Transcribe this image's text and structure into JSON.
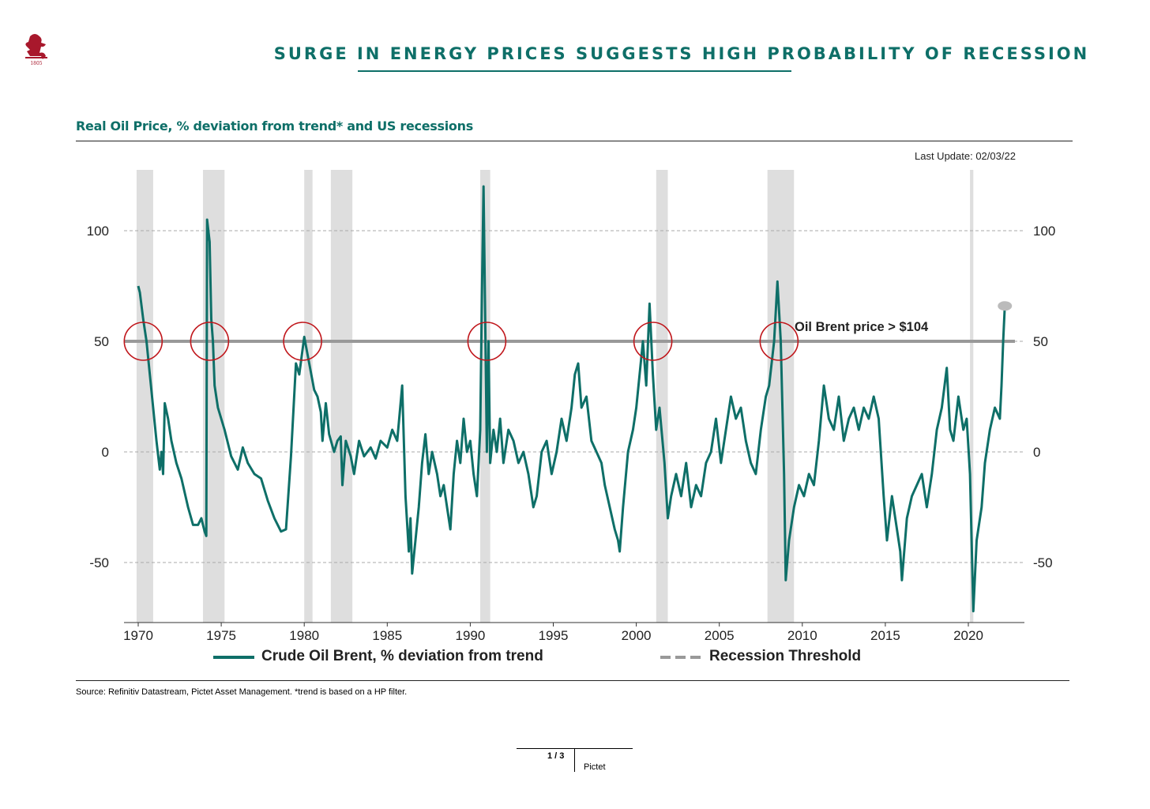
{
  "header": {
    "logo_text": "1805",
    "title": "SURGE IN ENERGY PRICES SUGGESTS HIGH PROBABILITY OF RECESSION",
    "subtitle": "Real Oil Price, % deviation from trend* and US recessions",
    "last_update": "Last Update: 02/03/22"
  },
  "footer": {
    "source": "Source: Refinitiv Datastream, Pictet Asset Management. *trend is based on a HP filter.",
    "page": "1 / 3",
    "brand": "Pictet"
  },
  "colors": {
    "series": "#0e6f68",
    "threshold": "#999999",
    "recession": "#dedede",
    "circle": "#c0161b",
    "title": "#0e6f68"
  },
  "chart_data": {
    "type": "line",
    "title": "Real Oil Price, % deviation from trend* and US recessions",
    "xlim": [
      1968.8,
      2023.5
    ],
    "ylim": [
      -77,
      128
    ],
    "x_ticks": [
      "1970",
      "1975",
      "1980",
      "1985",
      "1990",
      "1995",
      "2000",
      "2005",
      "2010",
      "2015",
      "2020"
    ],
    "y_ticks_left": [
      "100",
      "50",
      "0",
      "-50"
    ],
    "y_ticks_right": [
      "100",
      "50",
      "0",
      "-50"
    ],
    "y_tick_values": [
      100,
      50,
      0,
      -50
    ],
    "grid": "horizontal dashed",
    "legend_position": "bottom",
    "legend": [
      "Crude Oil Brent, % deviation from trend",
      "Recession Threshold"
    ],
    "threshold": {
      "name": "Recession Threshold",
      "value": 50
    },
    "annotation": "Oil Brent price > $104",
    "recessions": [
      [
        1969.9,
        1970.9
      ],
      [
        1973.9,
        1975.2
      ],
      [
        1980.0,
        1980.5
      ],
      [
        1981.6,
        1982.9
      ],
      [
        1990.6,
        1991.2
      ],
      [
        2001.2,
        2001.9
      ],
      [
        2007.9,
        2009.5
      ],
      [
        2020.1,
        2020.3
      ]
    ],
    "highlight_circles_x": [
      1970.3,
      1974.3,
      1979.9,
      1991.0,
      2001.0,
      2008.6
    ],
    "last_point": [
      2022.2,
      66
    ],
    "series": [
      {
        "name": "Crude Oil Brent, % deviation from trend",
        "points": [
          [
            1970.0,
            75
          ],
          [
            1970.1,
            72
          ],
          [
            1970.3,
            60
          ],
          [
            1970.5,
            50
          ],
          [
            1970.7,
            35
          ],
          [
            1970.9,
            20
          ],
          [
            1971.1,
            5
          ],
          [
            1971.3,
            -8
          ],
          [
            1971.4,
            0
          ],
          [
            1971.5,
            -10
          ],
          [
            1971.6,
            22
          ],
          [
            1971.8,
            15
          ],
          [
            1972.0,
            5
          ],
          [
            1972.3,
            -5
          ],
          [
            1972.6,
            -12
          ],
          [
            1973.0,
            -25
          ],
          [
            1973.3,
            -33
          ],
          [
            1973.6,
            -33
          ],
          [
            1973.8,
            -30
          ],
          [
            1974.0,
            -36
          ],
          [
            1974.1,
            -38
          ],
          [
            1974.15,
            105
          ],
          [
            1974.3,
            95
          ],
          [
            1974.4,
            60
          ],
          [
            1974.5,
            50
          ],
          [
            1974.6,
            30
          ],
          [
            1974.8,
            20
          ],
          [
            1975.2,
            10
          ],
          [
            1975.6,
            -2
          ],
          [
            1976.0,
            -8
          ],
          [
            1976.3,
            2
          ],
          [
            1976.6,
            -5
          ],
          [
            1977.0,
            -10
          ],
          [
            1977.4,
            -12
          ],
          [
            1977.8,
            -22
          ],
          [
            1978.2,
            -30
          ],
          [
            1978.6,
            -36
          ],
          [
            1978.9,
            -35
          ],
          [
            1979.2,
            -2
          ],
          [
            1979.5,
            40
          ],
          [
            1979.7,
            35
          ],
          [
            1980.0,
            52
          ],
          [
            1980.3,
            40
          ],
          [
            1980.6,
            28
          ],
          [
            1980.8,
            25
          ],
          [
            1981.0,
            18
          ],
          [
            1981.1,
            5
          ],
          [
            1981.3,
            22
          ],
          [
            1981.5,
            8
          ],
          [
            1981.8,
            0
          ],
          [
            1982.0,
            5
          ],
          [
            1982.2,
            7
          ],
          [
            1982.3,
            -15
          ],
          [
            1982.5,
            5
          ],
          [
            1982.8,
            -2
          ],
          [
            1983.0,
            -10
          ],
          [
            1983.3,
            5
          ],
          [
            1983.6,
            -2
          ],
          [
            1984.0,
            2
          ],
          [
            1984.3,
            -3
          ],
          [
            1984.6,
            5
          ],
          [
            1985.0,
            2
          ],
          [
            1985.3,
            10
          ],
          [
            1985.6,
            5
          ],
          [
            1985.9,
            30
          ],
          [
            1986.1,
            -20
          ],
          [
            1986.3,
            -45
          ],
          [
            1986.4,
            -30
          ],
          [
            1986.5,
            -55
          ],
          [
            1986.7,
            -40
          ],
          [
            1986.9,
            -25
          ],
          [
            1987.1,
            -5
          ],
          [
            1987.3,
            8
          ],
          [
            1987.5,
            -10
          ],
          [
            1987.7,
            0
          ],
          [
            1988.0,
            -10
          ],
          [
            1988.2,
            -20
          ],
          [
            1988.4,
            -15
          ],
          [
            1988.6,
            -25
          ],
          [
            1988.8,
            -35
          ],
          [
            1989.0,
            -10
          ],
          [
            1989.2,
            5
          ],
          [
            1989.4,
            -5
          ],
          [
            1989.6,
            15
          ],
          [
            1989.8,
            0
          ],
          [
            1990.0,
            5
          ],
          [
            1990.2,
            -10
          ],
          [
            1990.4,
            -20
          ],
          [
            1990.6,
            10
          ],
          [
            1990.7,
            70
          ],
          [
            1990.8,
            120
          ],
          [
            1990.9,
            60
          ],
          [
            1991.0,
            0
          ],
          [
            1991.1,
            50
          ],
          [
            1991.2,
            -5
          ],
          [
            1991.4,
            10
          ],
          [
            1991.6,
            0
          ],
          [
            1991.8,
            15
          ],
          [
            1992.0,
            -5
          ],
          [
            1992.3,
            10
          ],
          [
            1992.6,
            5
          ],
          [
            1992.9,
            -5
          ],
          [
            1993.2,
            0
          ],
          [
            1993.5,
            -10
          ],
          [
            1993.8,
            -25
          ],
          [
            1994.0,
            -20
          ],
          [
            1994.3,
            0
          ],
          [
            1994.6,
            5
          ],
          [
            1994.9,
            -10
          ],
          [
            1995.2,
            0
          ],
          [
            1995.5,
            15
          ],
          [
            1995.8,
            5
          ],
          [
            1996.1,
            20
          ],
          [
            1996.3,
            35
          ],
          [
            1996.5,
            40
          ],
          [
            1996.7,
            20
          ],
          [
            1997.0,
            25
          ],
          [
            1997.3,
            5
          ],
          [
            1997.6,
            0
          ],
          [
            1997.9,
            -5
          ],
          [
            1998.1,
            -15
          ],
          [
            1998.4,
            -25
          ],
          [
            1998.7,
            -35
          ],
          [
            1998.9,
            -40
          ],
          [
            1999.0,
            -45
          ],
          [
            1999.2,
            -25
          ],
          [
            1999.5,
            0
          ],
          [
            1999.8,
            10
          ],
          [
            2000.0,
            20
          ],
          [
            2000.2,
            35
          ],
          [
            2000.4,
            50
          ],
          [
            2000.6,
            30
          ],
          [
            2000.8,
            67
          ],
          [
            2001.0,
            35
          ],
          [
            2001.2,
            10
          ],
          [
            2001.4,
            20
          ],
          [
            2001.7,
            -5
          ],
          [
            2001.9,
            -30
          ],
          [
            2002.1,
            -20
          ],
          [
            2002.4,
            -10
          ],
          [
            2002.7,
            -20
          ],
          [
            2003.0,
            -5
          ],
          [
            2003.3,
            -25
          ],
          [
            2003.6,
            -15
          ],
          [
            2003.9,
            -20
          ],
          [
            2004.2,
            -5
          ],
          [
            2004.5,
            0
          ],
          [
            2004.8,
            15
          ],
          [
            2005.1,
            -5
          ],
          [
            2005.4,
            10
          ],
          [
            2005.7,
            25
          ],
          [
            2006.0,
            15
          ],
          [
            2006.3,
            20
          ],
          [
            2006.6,
            5
          ],
          [
            2006.9,
            -5
          ],
          [
            2007.2,
            -10
          ],
          [
            2007.5,
            10
          ],
          [
            2007.8,
            25
          ],
          [
            2008.0,
            30
          ],
          [
            2008.3,
            50
          ],
          [
            2008.5,
            77
          ],
          [
            2008.7,
            50
          ],
          [
            2008.9,
            -10
          ],
          [
            2009.0,
            -58
          ],
          [
            2009.2,
            -40
          ],
          [
            2009.5,
            -25
          ],
          [
            2009.8,
            -15
          ],
          [
            2010.1,
            -20
          ],
          [
            2010.4,
            -10
          ],
          [
            2010.7,
            -15
          ],
          [
            2011.0,
            5
          ],
          [
            2011.3,
            30
          ],
          [
            2011.6,
            15
          ],
          [
            2011.9,
            10
          ],
          [
            2012.2,
            25
          ],
          [
            2012.5,
            5
          ],
          [
            2012.8,
            15
          ],
          [
            2013.1,
            20
          ],
          [
            2013.4,
            10
          ],
          [
            2013.7,
            20
          ],
          [
            2014.0,
            15
          ],
          [
            2014.3,
            25
          ],
          [
            2014.6,
            15
          ],
          [
            2014.9,
            -20
          ],
          [
            2015.1,
            -40
          ],
          [
            2015.4,
            -20
          ],
          [
            2015.7,
            -35
          ],
          [
            2015.9,
            -45
          ],
          [
            2016.0,
            -58
          ],
          [
            2016.3,
            -30
          ],
          [
            2016.6,
            -20
          ],
          [
            2016.9,
            -15
          ],
          [
            2017.2,
            -10
          ],
          [
            2017.5,
            -25
          ],
          [
            2017.8,
            -10
          ],
          [
            2018.1,
            10
          ],
          [
            2018.4,
            20
          ],
          [
            2018.7,
            38
          ],
          [
            2018.9,
            10
          ],
          [
            2019.1,
            5
          ],
          [
            2019.4,
            25
          ],
          [
            2019.7,
            10
          ],
          [
            2019.9,
            15
          ],
          [
            2020.1,
            -10
          ],
          [
            2020.3,
            -72
          ],
          [
            2020.5,
            -40
          ],
          [
            2020.8,
            -25
          ],
          [
            2021.0,
            -5
          ],
          [
            2021.3,
            10
          ],
          [
            2021.6,
            20
          ],
          [
            2021.9,
            15
          ],
          [
            2022.0,
            30
          ],
          [
            2022.1,
            50
          ],
          [
            2022.2,
            66
          ]
        ]
      }
    ]
  }
}
